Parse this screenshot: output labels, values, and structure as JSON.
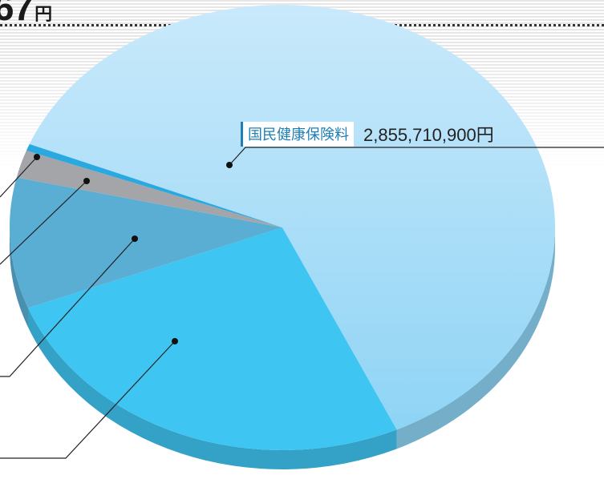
{
  "header": {
    "total_partial": "67",
    "total_unit": "円"
  },
  "chart_data": {
    "type": "pie",
    "title": "",
    "slices": [
      {
        "label": "国民健康保険料",
        "value_text": "2,855,710,900円",
        "share": 0.62,
        "color": "#8fd4f5"
      },
      {
        "label": "",
        "share": 0.26,
        "color": "#3ec5f2"
      },
      {
        "label": "",
        "share": 0.095,
        "color": "#5aaed3"
      },
      {
        "label": "",
        "share": 0.02,
        "color": "#a3a5a8"
      },
      {
        "label": "",
        "share": 0.005,
        "color": "#29a9e0"
      }
    ]
  }
}
